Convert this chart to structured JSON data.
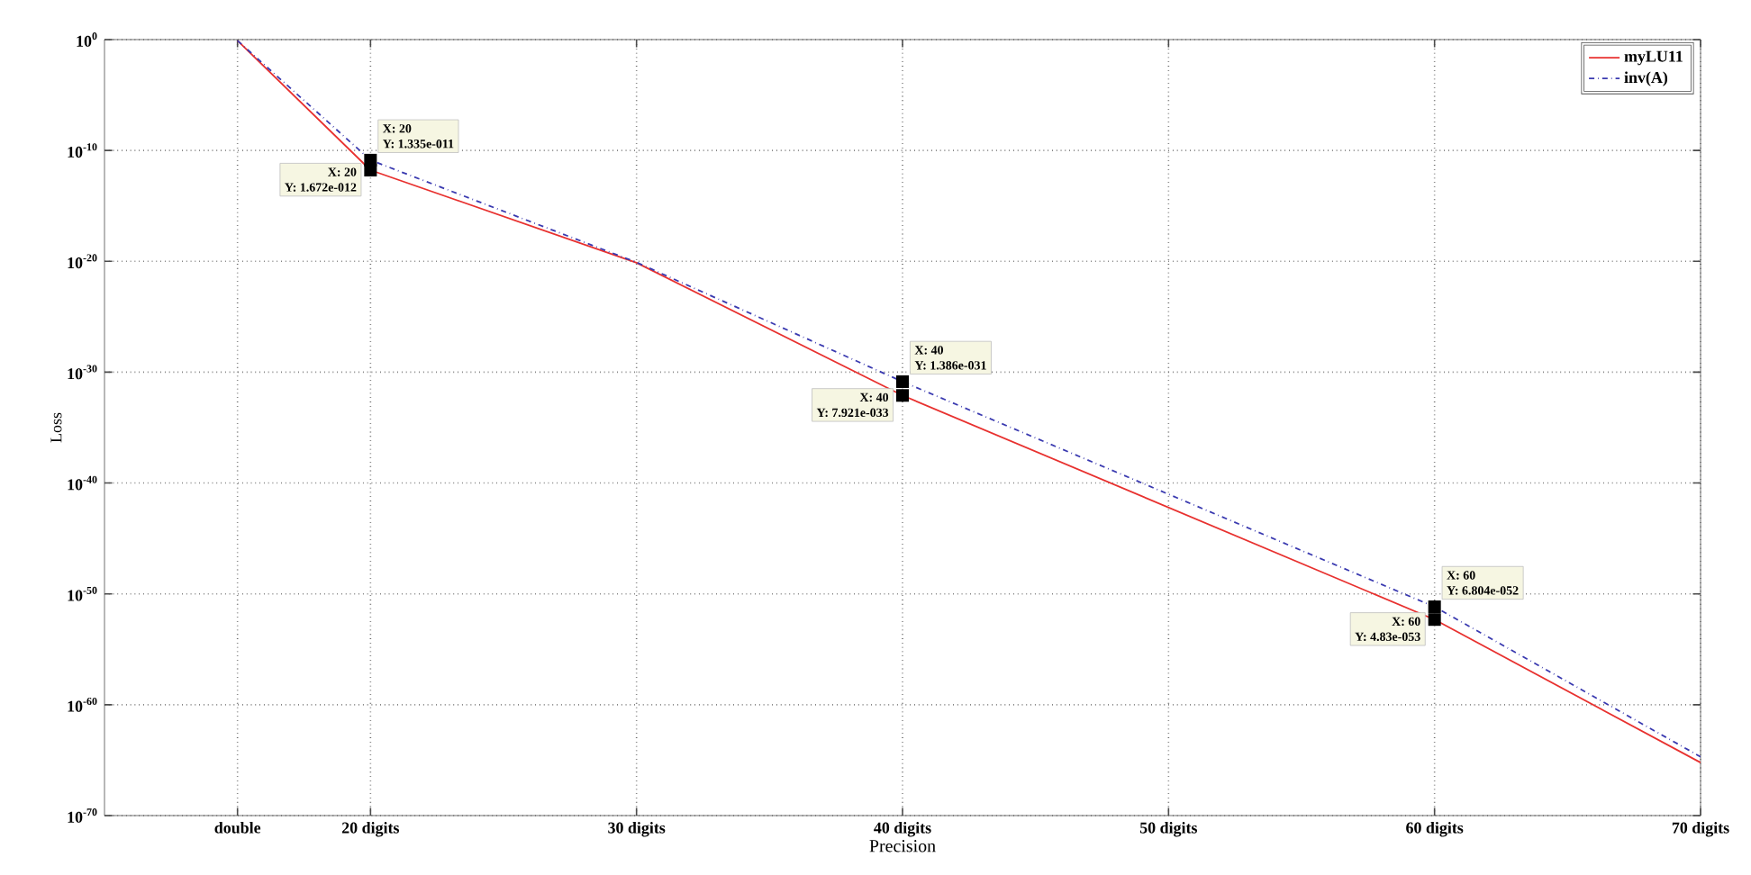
{
  "chart_data": {
    "type": "line",
    "xlabel": "Precision",
    "ylabel": "Loss",
    "x": [
      15,
      20,
      30,
      40,
      60,
      70
    ],
    "series": [
      {
        "name": "myLU11",
        "color": "#e8312f",
        "line_style": "solid",
        "values": [
          0.8,
          1.672e-12,
          7.4e-21,
          7.921e-33,
          4.83e-53,
          6e-66
        ]
      },
      {
        "name": "inv(A)",
        "color": "#3a3ab0",
        "line_style": "dashed",
        "values": [
          0.8,
          1.335e-11,
          8e-21,
          1.386e-31,
          6.804e-52,
          2e-65
        ]
      }
    ],
    "log": "y",
    "grid": true,
    "legend": "top right",
    "xlim": [
      10,
      70
    ],
    "xticks": [
      {
        "value": 15,
        "label": "double"
      },
      {
        "value": 20,
        "label": "20 digits"
      },
      {
        "value": 30,
        "label": "30 digits"
      },
      {
        "value": 40,
        "label": "40 digits"
      },
      {
        "value": 50,
        "label": "50 digits"
      },
      {
        "value": 60,
        "label": "60 digits"
      },
      {
        "value": 70,
        "label": "70 digits"
      }
    ],
    "ylim": [
      1e-70,
      1
    ],
    "yticks": [
      {
        "value": 1,
        "label": "10$^{0}$"
      },
      {
        "value": 1e-10,
        "label": "10$^{-10}$"
      },
      {
        "value": 1e-20,
        "label": "10$^{-20}$"
      },
      {
        "value": 1e-30,
        "label": "10$^{-30}$"
      },
      {
        "value": 1e-40,
        "label": "10$^{-40}$"
      },
      {
        "value": 1e-50,
        "label": "10$^{-50}$"
      },
      {
        "value": 1e-60,
        "label": "10$^{-60}$"
      },
      {
        "value": 1e-70,
        "label": "10$^{-70}$"
      }
    ],
    "annotations": [
      {
        "text": "X: 20",
        "x": 20,
        "y": 1.672e-12
      },
      {
        "text": "Y: 1.672e-012",
        "x": 20,
        "y": 1.672e-12
      },
      {
        "text": "X: 20",
        "x": 20,
        "y": 1.335e-11
      },
      {
        "text": "Y: 1.335e-011",
        "x": 20,
        "y": 1.335e-11
      },
      {
        "text": "X: 40",
        "x": 40,
        "y": 7.921e-33
      },
      {
        "text": "Y: 7.921e-033",
        "x": 40,
        "y": 7.921e-33
      },
      {
        "text": "X: 40",
        "x": 40,
        "y": 1.386e-31
      },
      {
        "text": "Y: 1.386e-031",
        "x": 40,
        "y": 1.386e-31
      },
      {
        "text": "X: 60",
        "x": 60,
        "y": 4.83e-53
      },
      {
        "text": "Y: 4.83e-053",
        "x": 60,
        "y": 4.83e-53
      },
      {
        "text": "X: 60",
        "x": 60,
        "y": 6.804e-52
      },
      {
        "text": "Y: 6.804e-052",
        "x": 60,
        "y": 6.804e-52
      }
    ]
  }
}
